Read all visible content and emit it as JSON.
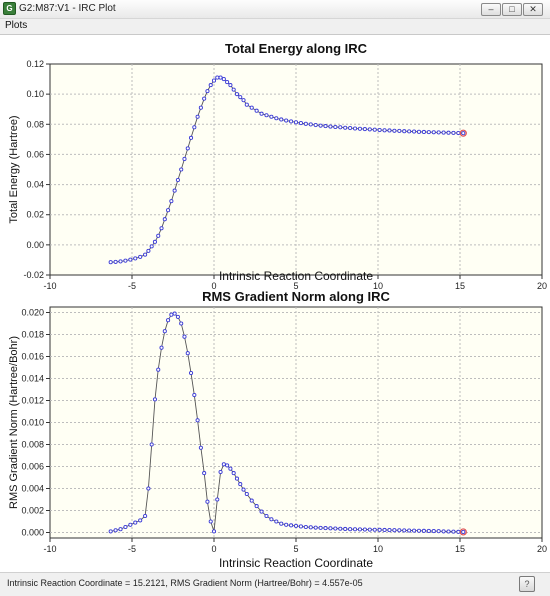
{
  "window": {
    "title": "G2:M87:V1 - IRC Plot",
    "icon": "gaussview-app-icon",
    "min_glyph": "–",
    "max_glyph": "□",
    "close_glyph": "✕"
  },
  "menu": {
    "items": [
      "Plots"
    ]
  },
  "status": {
    "text": "Intrinsic Reaction Coordinate = 15.2121, RMS Gradient Norm (Hartree/Bohr) = 4.557e-05",
    "icon": "help-icon",
    "icon_glyph": "?"
  },
  "colors": {
    "point_marker": "#3b3bd6",
    "line": "#555555",
    "selected_point": "#e05050",
    "plot_background": "#fffff4",
    "grid": "#bdbdbd"
  },
  "chart_data": [
    {
      "type": "line",
      "title": "Total Energy along IRC",
      "xlabel": "Intrinsic Reaction Coordinate",
      "ylabel": "Total Energy (Hartree)",
      "xlim": [
        -10,
        20
      ],
      "ylim": [
        -0.02,
        0.12
      ],
      "xticks": [
        -10,
        -5,
        0,
        5,
        10,
        15,
        20
      ],
      "yticks": [
        -0.02,
        0.0,
        0.02,
        0.04,
        0.06,
        0.08,
        0.1,
        0.12
      ],
      "ytick_labels": [
        "-0.02",
        "0.00",
        "0.02",
        "0.04",
        "0.06",
        "0.08",
        "0.10",
        "0.12"
      ],
      "xtick_labels": [
        "-10",
        "-5",
        "0",
        "5",
        "10",
        "15",
        "20"
      ],
      "grid": true,
      "legend": "none",
      "selected_x": 15.21,
      "series": [
        {
          "x": [
            -6.3,
            -6.0,
            -5.7,
            -5.4,
            -5.1,
            -4.8,
            -4.5,
            -4.2,
            -4.0,
            -3.8,
            -3.6,
            -3.4,
            -3.2,
            -3.0,
            -2.8,
            -2.6,
            -2.4,
            -2.2,
            -2.0,
            -1.8,
            -1.6,
            -1.4,
            -1.2,
            -1.0,
            -0.8,
            -0.6,
            -0.4,
            -0.2,
            0.0,
            0.2,
            0.4,
            0.6,
            0.8,
            1.0,
            1.2,
            1.4,
            1.6,
            1.8,
            2.0,
            2.3,
            2.6,
            2.9,
            3.2,
            3.5,
            3.8,
            4.1,
            4.4,
            4.7,
            5.0,
            5.3,
            5.6,
            5.9,
            6.2,
            6.5,
            6.8,
            7.1,
            7.4,
            7.7,
            8.0,
            8.3,
            8.6,
            8.9,
            9.2,
            9.5,
            9.8,
            10.1,
            10.4,
            10.7,
            11.0,
            11.3,
            11.6,
            11.9,
            12.2,
            12.5,
            12.8,
            13.1,
            13.4,
            13.7,
            14.0,
            14.3,
            14.6,
            14.9,
            15.2
          ],
          "y": [
            -0.0115,
            -0.0113,
            -0.011,
            -0.0105,
            -0.0098,
            -0.009,
            -0.008,
            -0.0065,
            -0.004,
            -0.001,
            0.002,
            0.006,
            0.011,
            0.017,
            0.023,
            0.029,
            0.036,
            0.043,
            0.05,
            0.057,
            0.064,
            0.071,
            0.078,
            0.085,
            0.091,
            0.097,
            0.102,
            0.106,
            0.109,
            0.111,
            0.111,
            0.11,
            0.108,
            0.106,
            0.103,
            0.1,
            0.098,
            0.096,
            0.093,
            0.091,
            0.089,
            0.087,
            0.086,
            0.085,
            0.084,
            0.0832,
            0.0825,
            0.0819,
            0.0813,
            0.0808,
            0.0803,
            0.0799,
            0.0795,
            0.0791,
            0.0788,
            0.0785,
            0.0782,
            0.078,
            0.0777,
            0.0775,
            0.0772,
            0.077,
            0.0768,
            0.0766,
            0.0764,
            0.0762,
            0.076,
            0.0759,
            0.0757,
            0.0756,
            0.0754,
            0.0753,
            0.0752,
            0.075,
            0.0749,
            0.0748,
            0.0747,
            0.0746,
            0.0745,
            0.0744,
            0.0743,
            0.0742,
            0.0741
          ]
        }
      ]
    },
    {
      "type": "line",
      "title": "RMS Gradient Norm along IRC",
      "xlabel": "Intrinsic Reaction Coordinate",
      "ylabel": "RMS Gradient Norm (Hartree/Bohr)",
      "xlim": [
        -10,
        20
      ],
      "ylim": [
        -0.0005,
        0.0205
      ],
      "xticks": [
        -10,
        -5,
        0,
        5,
        10,
        15,
        20
      ],
      "yticks": [
        0.0,
        0.002,
        0.004,
        0.006,
        0.008,
        0.01,
        0.012,
        0.014,
        0.016,
        0.018,
        0.02
      ],
      "ytick_labels": [
        "0.000",
        "0.002",
        "0.004",
        "0.006",
        "0.008",
        "0.010",
        "0.012",
        "0.014",
        "0.016",
        "0.018",
        "0.020"
      ],
      "xtick_labels": [
        "-10",
        "-5",
        "0",
        "5",
        "10",
        "15",
        "20"
      ],
      "grid": true,
      "legend": "none",
      "selected_x": 15.21,
      "series": [
        {
          "x": [
            -6.3,
            -6.0,
            -5.7,
            -5.4,
            -5.1,
            -4.8,
            -4.5,
            -4.2,
            -4.0,
            -3.8,
            -3.6,
            -3.4,
            -3.2,
            -3.0,
            -2.8,
            -2.6,
            -2.4,
            -2.2,
            -2.0,
            -1.8,
            -1.6,
            -1.4,
            -1.2,
            -1.0,
            -0.8,
            -0.6,
            -0.4,
            -0.2,
            0.0,
            0.2,
            0.4,
            0.6,
            0.8,
            1.0,
            1.2,
            1.4,
            1.6,
            1.8,
            2.0,
            2.3,
            2.6,
            2.9,
            3.2,
            3.5,
            3.8,
            4.1,
            4.4,
            4.7,
            5.0,
            5.3,
            5.6,
            5.9,
            6.2,
            6.5,
            6.8,
            7.1,
            7.4,
            7.7,
            8.0,
            8.3,
            8.6,
            8.9,
            9.2,
            9.5,
            9.8,
            10.1,
            10.4,
            10.7,
            11.0,
            11.3,
            11.6,
            11.9,
            12.2,
            12.5,
            12.8,
            13.1,
            13.4,
            13.7,
            14.0,
            14.3,
            14.6,
            14.9,
            15.2
          ],
          "y": [
            0.0001,
            0.0002,
            0.0003,
            0.0005,
            0.0007,
            0.0009,
            0.0011,
            0.0015,
            0.004,
            0.008,
            0.0121,
            0.0148,
            0.0168,
            0.0183,
            0.0193,
            0.0198,
            0.0199,
            0.0196,
            0.019,
            0.0178,
            0.0163,
            0.0145,
            0.0125,
            0.0102,
            0.0077,
            0.0054,
            0.0028,
            0.001,
            0.0001,
            0.003,
            0.0055,
            0.0062,
            0.0061,
            0.0058,
            0.0054,
            0.0049,
            0.0044,
            0.0039,
            0.0035,
            0.0029,
            0.0024,
            0.0019,
            0.0015,
            0.0012,
            0.001,
            0.0008,
            0.0007,
            0.00065,
            0.0006,
            0.00055,
            0.0005,
            0.00047,
            0.00044,
            0.00042,
            0.0004,
            0.00038,
            0.00036,
            0.00034,
            0.00032,
            0.0003,
            0.00029,
            0.00028,
            0.00027,
            0.00026,
            0.00025,
            0.00024,
            0.00023,
            0.00022,
            0.00021,
            0.0002,
            0.00019,
            0.00018,
            0.00017,
            0.00016,
            0.00015,
            0.00014,
            0.00013,
            0.00012,
            0.0001,
            9e-05,
            8e-05,
            6e-05,
            5e-05
          ]
        }
      ]
    }
  ]
}
